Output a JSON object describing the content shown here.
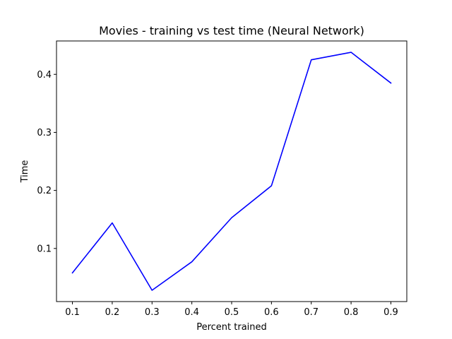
{
  "chart_data": {
    "type": "line",
    "title": "Movies - training vs test time (Neural Network)",
    "xlabel": "Percent trained",
    "ylabel": "Time",
    "x": [
      0.1,
      0.2,
      0.3,
      0.4,
      0.5,
      0.6,
      0.7,
      0.8,
      0.9
    ],
    "series": [
      {
        "values": [
          0.058,
          0.144,
          0.028,
          0.077,
          0.153,
          0.208,
          0.425,
          0.438,
          0.385
        ],
        "color": "#0000ff"
      }
    ],
    "xlim": [
      0.06,
      0.94
    ],
    "ylim": [
      0.0085,
      0.4575
    ],
    "xticks": [
      "0.1",
      "0.2",
      "0.3",
      "0.4",
      "0.5",
      "0.6",
      "0.7",
      "0.8",
      "0.9"
    ],
    "yticks": [
      "0.1",
      "0.2",
      "0.3",
      "0.4"
    ],
    "grid": false,
    "legend": "none"
  }
}
